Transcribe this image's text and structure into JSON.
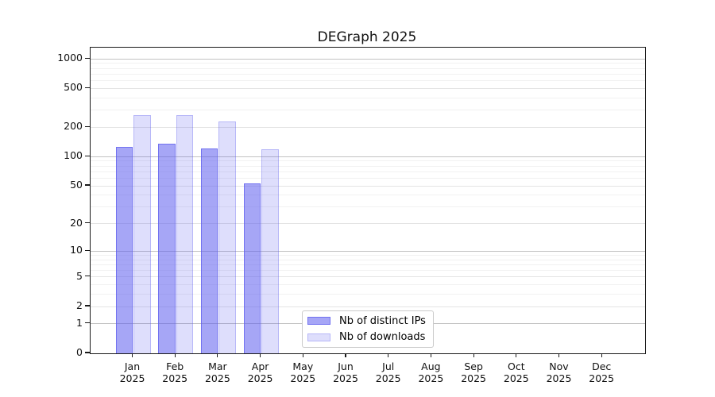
{
  "title": "DEGraph 2025",
  "legend": {
    "items": [
      {
        "label": "Nb of distinct IPs"
      },
      {
        "label": "Nb of downloads"
      }
    ]
  },
  "y_axis": {
    "tick_labels": [
      "1000",
      "500",
      "200",
      "100",
      "50",
      "20",
      "10",
      "5",
      "2",
      "1",
      "0"
    ]
  },
  "chart_data": {
    "type": "bar",
    "scale": "symlog",
    "title": "DEGraph 2025",
    "categories": [
      "Jan 2025",
      "Feb 2025",
      "Mar 2025",
      "Apr 2025",
      "May 2025",
      "Jun 2025",
      "Jul 2025",
      "Aug 2025",
      "Sep 2025",
      "Oct 2025",
      "Nov 2025",
      "Dec 2025"
    ],
    "series": [
      {
        "name": "Nb of distinct IPs",
        "values": [
          127,
          137,
          122,
          53,
          0,
          0,
          0,
          0,
          0,
          0,
          0,
          0
        ],
        "fill": "rgba(92,92,238,0.55)",
        "stroke": "rgba(92,92,238,0.70)"
      },
      {
        "name": "Nb of downloads",
        "values": [
          266,
          266,
          230,
          120,
          0,
          0,
          0,
          0,
          0,
          0,
          0,
          0
        ],
        "fill": "rgba(92,92,238,0.20)",
        "stroke": "rgba(92,92,238,0.30)"
      }
    ],
    "xlabel": "",
    "ylabel": "",
    "y_ticks_major": [
      0,
      1,
      2,
      5,
      10,
      20,
      50,
      100,
      200,
      500,
      1000
    ],
    "y_ticks_decade": [
      1,
      10,
      100,
      1000
    ],
    "y_ticks_minor": [
      3,
      4,
      6,
      7,
      8,
      9,
      30,
      40,
      60,
      70,
      80,
      90,
      300,
      400,
      600,
      700,
      800,
      900
    ],
    "ylim": [
      0,
      1305
    ],
    "grid": {
      "decade_color": "#c2c2c2",
      "major_color": "#e4e4e4",
      "minor_color": "#f1f1f1",
      "on": true
    },
    "legend_position": "inside-bottom-center"
  }
}
